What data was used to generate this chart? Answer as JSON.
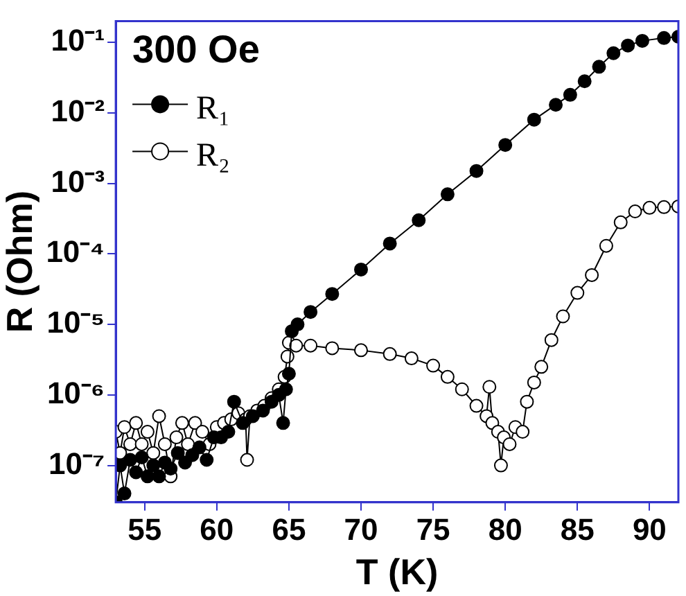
{
  "chart_data": {
    "type": "line",
    "xlabel": "T (K)",
    "ylabel": "R (Ohm)",
    "legend_title": "300 Oe",
    "legend": "top left",
    "marker": "circle",
    "line_style": "solid",
    "grid": false,
    "log": "y",
    "xlim": [
      53,
      92
    ],
    "xticks": [
      55,
      60,
      65,
      70,
      75,
      80,
      85,
      90
    ],
    "ylim": [
      3e-08,
      0.2
    ],
    "yticks": [
      {
        "value": 1e-07,
        "label": "10⁻⁷"
      },
      {
        "value": 1e-06,
        "label": "10⁻⁶"
      },
      {
        "value": 1e-05,
        "label": "10⁻⁵"
      },
      {
        "value": 0.0001,
        "label": "10⁻⁴"
      },
      {
        "value": 0.001,
        "label": "10⁻³"
      },
      {
        "value": 0.01,
        "label": "10⁻²"
      },
      {
        "value": 0.1,
        "label": "10⁻¹"
      }
    ],
    "series": [
      {
        "name": "R₁",
        "color": "#000000",
        "x": [
          53.0,
          53.3,
          53.6,
          54,
          54.4,
          54.8,
          55.2,
          55.6,
          56,
          56.4,
          56.8,
          57.3,
          57.8,
          58.3,
          58.8,
          59.3,
          59.8,
          60.3,
          60.8,
          61.2,
          61.8,
          62.5,
          63.2,
          63.8,
          64.3,
          64.6,
          64.8,
          65.0,
          65.2,
          65.6,
          66.5,
          68,
          70,
          72,
          74,
          76,
          78,
          80,
          82,
          83.5,
          84.5,
          85.5,
          86.5,
          87.5,
          88.5,
          89.5,
          91,
          92
        ],
        "values": [
          3e-08,
          1e-07,
          4e-08,
          1.2e-07,
          8e-08,
          1.3e-07,
          7e-08,
          1e-07,
          7e-08,
          1.1e-07,
          9e-08,
          1.5e-07,
          1.1e-07,
          1.4e-07,
          1.8e-07,
          1.2e-07,
          2.5e-07,
          2.5e-07,
          3e-07,
          8e-07,
          4e-07,
          5e-07,
          6e-07,
          8e-07,
          1e-06,
          4e-07,
          1.2e-06,
          2e-06,
          8e-06,
          1e-05,
          1.5e-05,
          2.7e-05,
          6e-05,
          0.00014,
          0.0003,
          0.0007,
          0.0015,
          0.0035,
          0.008,
          0.013,
          0.018,
          0.028,
          0.045,
          0.07,
          0.09,
          0.105,
          0.115,
          0.12
        ]
      },
      {
        "name": "R₂",
        "color": "#ffffff",
        "x": [
          53,
          53.3,
          53.6,
          54,
          54.4,
          54.8,
          55.2,
          55.6,
          56,
          56.4,
          56.8,
          57.2,
          57.6,
          58,
          58.5,
          59,
          59.5,
          60,
          60.5,
          61,
          61.5,
          62,
          62.1,
          62.3,
          62.8,
          63.3,
          63.8,
          64.3,
          64.7,
          64.9,
          65,
          65.5,
          66.5,
          68,
          70,
          72,
          73.5,
          75,
          76,
          77,
          78,
          78.7,
          78.9,
          79.1,
          79.5,
          79.7,
          79.9,
          80.3,
          80.7,
          81.2,
          81.5,
          82,
          82.5,
          83.2,
          84,
          85,
          86,
          87,
          88,
          89,
          90,
          91,
          92
        ],
        "values": [
          3e-07,
          1.5e-07,
          3.5e-07,
          2e-07,
          4e-07,
          2e-07,
          3e-07,
          1.5e-07,
          5e-07,
          2e-07,
          7e-08,
          2.5e-07,
          4e-07,
          2e-07,
          4e-07,
          3e-07,
          2e-07,
          3.5e-07,
          4e-07,
          4.5e-07,
          5.5e-07,
          4.5e-07,
          1.2e-07,
          5e-07,
          6e-07,
          7e-07,
          9e-07,
          1.2e-06,
          1.8e-06,
          3.5e-06,
          5.5e-06,
          5e-06,
          5e-06,
          4.6e-06,
          4.3e-06,
          3.8e-06,
          3.3e-06,
          2.6e-06,
          1.8e-06,
          1.2e-06,
          7e-07,
          5e-07,
          1.3e-06,
          4e-07,
          3e-07,
          1e-07,
          2.5e-07,
          2e-07,
          3.5e-07,
          3e-07,
          8e-07,
          1.5e-06,
          2.5e-06,
          6e-06,
          1.3e-05,
          2.8e-05,
          5e-05,
          0.00013,
          0.00028,
          0.0004,
          0.00045,
          0.00046,
          0.00047
        ]
      }
    ]
  }
}
